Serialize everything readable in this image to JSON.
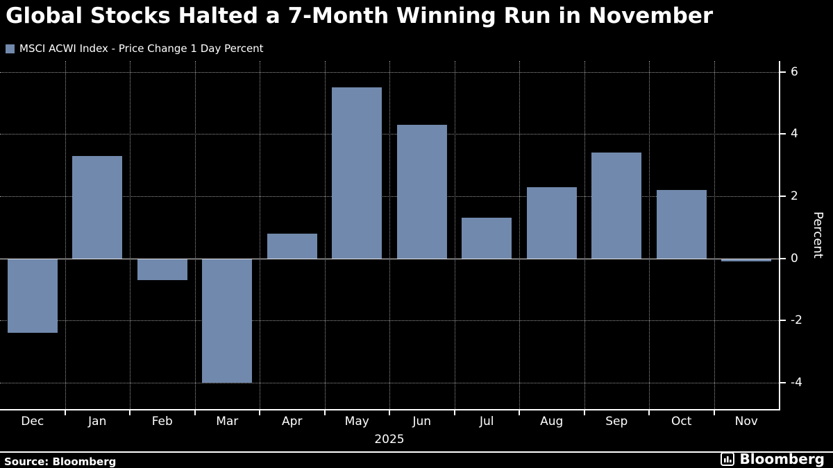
{
  "title": "Global Stocks Halted a 7-Month Winning Run in November",
  "legend": {
    "label": "MSCI ACWI Index - Price Change 1 Day Percent",
    "swatch_color": "#7189ac"
  },
  "footer": {
    "source": "Source: Bloomberg",
    "brand": "Bloomberg"
  },
  "chart_data": {
    "type": "bar",
    "categories": [
      "Dec",
      "Jan",
      "Feb",
      "Mar",
      "Apr",
      "May",
      "Jun",
      "Jul",
      "Aug",
      "Sep",
      "Oct",
      "Nov"
    ],
    "values": [
      -2.4,
      3.3,
      -0.7,
      -4.0,
      0.8,
      5.5,
      4.3,
      1.3,
      2.3,
      3.4,
      2.2,
      -0.1
    ],
    "x_axis_year_label": "2025",
    "ylabel": "Percent",
    "yticks": [
      6,
      4,
      2,
      0,
      -2,
      -4
    ],
    "ylim": [
      -4.85,
      6.35
    ],
    "bar_color": "#7189ac",
    "grid": true,
    "grid_style": "dotted",
    "legend_position": "top-left",
    "axis_side": "right",
    "background_color": "#000000",
    "text_color": "#ffffff"
  }
}
